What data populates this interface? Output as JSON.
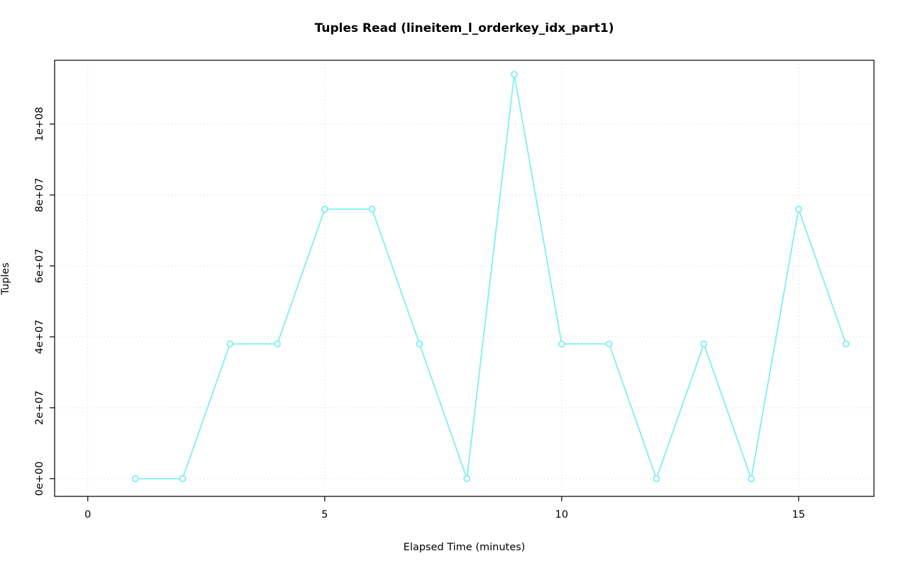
{
  "colors": {
    "series": "#7FEFEF",
    "grid": "#d3d3d3",
    "axis": "#000000",
    "background": "#ffffff"
  },
  "chart_data": {
    "type": "line",
    "title": "Tuples Read (lineitem_l_orderkey_idx_part1)",
    "xlabel": "Elapsed Time (minutes)",
    "ylabel": "Tuples",
    "x": [
      1,
      2,
      3,
      4,
      5,
      6,
      7,
      8,
      9,
      10,
      11,
      12,
      13,
      14,
      15,
      16
    ],
    "y": [
      0,
      0,
      38000000,
      38000000,
      76000000,
      76000000,
      38000000,
      0,
      114000000,
      38000000,
      38000000,
      0,
      38000000,
      0,
      76000000,
      38000000
    ],
    "x_ticks": [
      {
        "value": 0,
        "label": "0"
      },
      {
        "value": 5,
        "label": "5"
      },
      {
        "value": 10,
        "label": "10"
      },
      {
        "value": 15,
        "label": "15"
      }
    ],
    "y_ticks": [
      {
        "value": 0,
        "label": "0e+00"
      },
      {
        "value": 20000000,
        "label": "2e+07"
      },
      {
        "value": 40000000,
        "label": "4e+07"
      },
      {
        "value": 60000000,
        "label": "6e+07"
      },
      {
        "value": 80000000,
        "label": "8e+07"
      },
      {
        "value": 100000000,
        "label": "1e+08"
      }
    ],
    "xlim": [
      -0.7,
      16.59
    ],
    "ylim": [
      -5000000,
      118000000
    ],
    "grid": true,
    "legend": "none",
    "marker": "open-circle"
  }
}
